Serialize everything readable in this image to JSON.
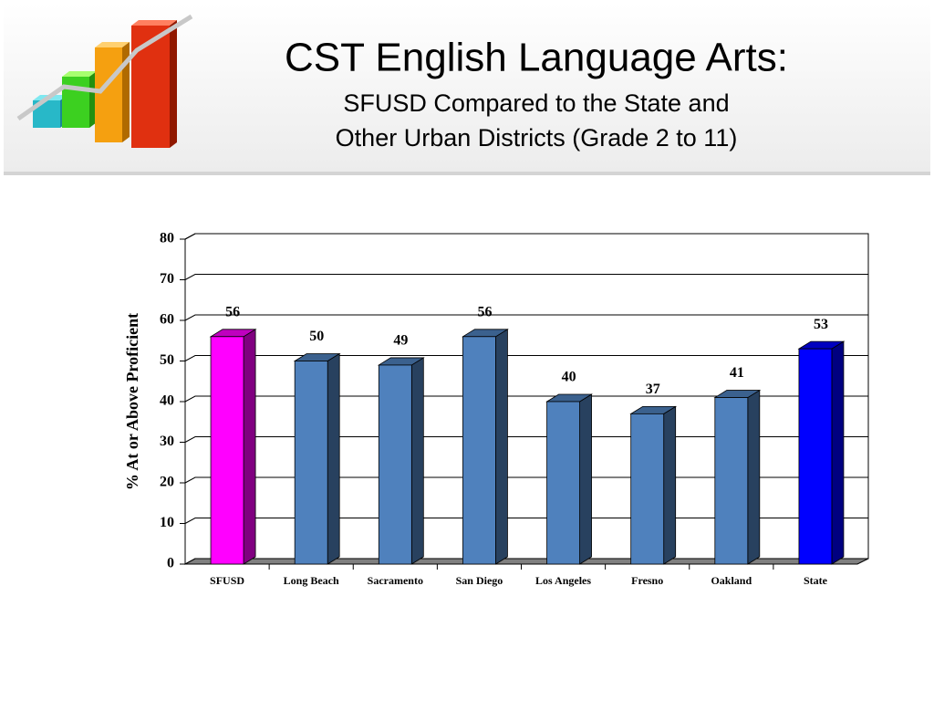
{
  "chart_data": {
    "type": "bar3d",
    "title": "CST English Language Arts:",
    "subtitle_lines": [
      "SFUSD Compared to the State and",
      "Other Urban Districts (Grade 2 to 11)"
    ],
    "y_label": "% At or Above Proficient",
    "categories": [
      "SFUSD",
      "Long Beach",
      "Sacramento",
      "San Diego",
      "Los Angeles",
      "Fresno",
      "Oakland",
      "State"
    ],
    "values": [
      56,
      50,
      49,
      56,
      40,
      37,
      41,
      53
    ],
    "colors": [
      "#ff00ff",
      "#4f81bd",
      "#4f81bd",
      "#4f81bd",
      "#4f81bd",
      "#4f81bd",
      "#4f81bd",
      "#0000ff"
    ],
    "ylim": [
      0,
      80
    ],
    "yticks": [
      0,
      10,
      20,
      30,
      40,
      50,
      60,
      70,
      80
    ],
    "grid": true
  }
}
